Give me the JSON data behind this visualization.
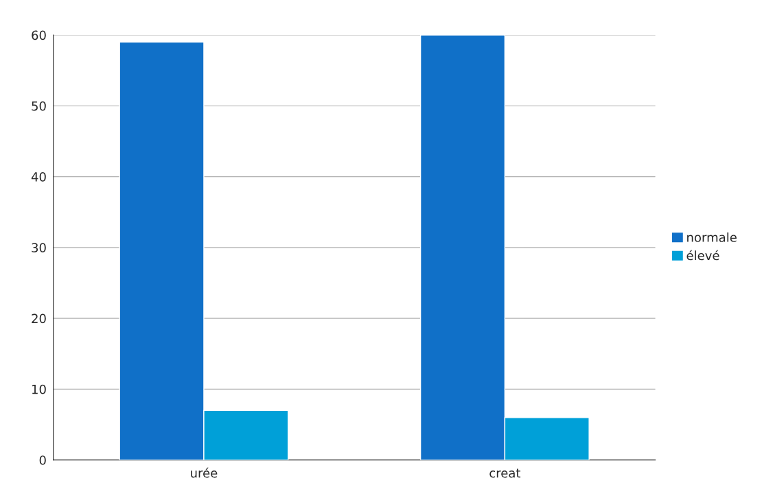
{
  "chart_data": {
    "type": "bar",
    "categories": [
      "urée",
      "creat"
    ],
    "series": [
      {
        "name": "normale",
        "color": "#1070c8",
        "values": [
          59,
          60
        ]
      },
      {
        "name": "élevé",
        "color": "#00a0d8",
        "values": [
          7,
          6
        ]
      }
    ],
    "ylim": [
      0,
      60
    ],
    "yticks": [
      0,
      10,
      20,
      30,
      40,
      50,
      60
    ],
    "grid": "y",
    "legend": "right"
  }
}
